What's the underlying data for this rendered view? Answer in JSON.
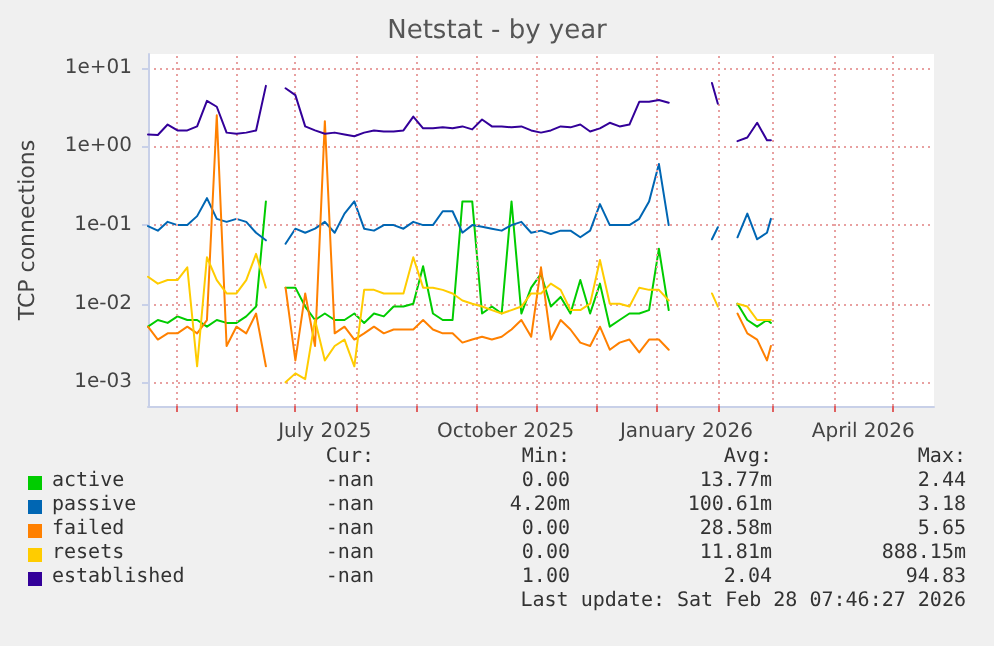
{
  "chart_data": {
    "type": "line",
    "title": "Netstat - by year",
    "ylabel": "TCP connections",
    "log": "y",
    "grid": true,
    "legend": "bottom",
    "marker": "none",
    "line_style": "solid",
    "xlim": [
      "2025-04-17",
      "2026-05-22"
    ],
    "ylim": [
      0.0005,
      15
    ],
    "xticks": [
      {
        "value": "2025-05-01",
        "label": null
      },
      {
        "value": "2025-06-01",
        "label": null
      },
      {
        "value": "2025-07-01",
        "label": null
      },
      {
        "value": "2025-08-01",
        "label": null
      },
      {
        "value": "2025-09-01",
        "label": null
      },
      {
        "value": "2025-10-01",
        "label": null
      },
      {
        "value": "2025-11-01",
        "label": null
      },
      {
        "value": "2025-12-01",
        "label": null
      },
      {
        "value": "2026-01-01",
        "label": null
      },
      {
        "value": "2026-02-01",
        "label": null
      },
      {
        "value": "2026-03-01",
        "label": null
      },
      {
        "value": "2026-04-01",
        "label": null
      },
      {
        "value": "2026-05-01",
        "label": null
      },
      {
        "value": "2025-07-16",
        "label": "July 2025"
      },
      {
        "value": "2025-10-16",
        "label": "October 2025"
      },
      {
        "value": "2026-01-16",
        "label": "January 2026"
      },
      {
        "value": "2026-04-16",
        "label": "April 2026"
      }
    ],
    "yticks": [
      {
        "value": 10,
        "label": "1e+01"
      },
      {
        "value": 1,
        "label": "1e+00"
      },
      {
        "value": 0.1,
        "label": "1e-01"
      },
      {
        "value": 0.01,
        "label": "1e-02"
      },
      {
        "value": 0.001,
        "label": "1e-03"
      }
    ],
    "x": [
      "2025-04-17",
      "2025-04-22",
      "2025-04-27",
      "2025-05-02",
      "2025-05-07",
      "2025-05-12",
      "2025-05-17",
      "2025-05-22",
      "2025-05-27",
      "2025-06-01",
      "2025-06-06",
      "2025-06-11",
      "2025-06-16",
      "2025-06-21",
      "2025-06-26",
      "2025-07-01",
      "2025-07-06",
      "2025-07-11",
      "2025-07-16",
      "2025-07-21",
      "2025-07-26",
      "2025-07-31",
      "2025-08-05",
      "2025-08-10",
      "2025-08-15",
      "2025-08-20",
      "2025-08-25",
      "2025-08-30",
      "2025-09-04",
      "2025-09-09",
      "2025-09-14",
      "2025-09-19",
      "2025-09-24",
      "2025-09-29",
      "2025-10-04",
      "2025-10-09",
      "2025-10-14",
      "2025-10-19",
      "2025-10-24",
      "2025-10-29",
      "2025-11-03",
      "2025-11-08",
      "2025-11-13",
      "2025-11-18",
      "2025-11-23",
      "2025-11-28",
      "2025-12-03",
      "2025-12-08",
      "2025-12-13",
      "2025-12-18",
      "2025-12-23",
      "2025-12-28",
      "2026-01-02",
      "2026-01-07",
      "2026-01-12",
      "2026-01-17",
      "2026-01-22",
      "2026-01-27",
      "2026-01-29",
      "2026-02-01",
      "2026-02-06",
      "2026-02-11",
      "2026-02-16",
      "2026-02-21",
      "2026-02-26",
      "2026-02-28"
    ],
    "series": [
      {
        "name": "active",
        "color": "#00cc00",
        "values": [
          0.0051,
          0.0062,
          0.0057,
          0.0069,
          0.0062,
          0.0062,
          0.0051,
          0.0062,
          0.0057,
          0.0057,
          0.0069,
          0.0092,
          0.2,
          null,
          0.016,
          0.016,
          0.0092,
          0.0062,
          0.0075,
          0.0062,
          0.0062,
          0.0075,
          0.0057,
          0.0075,
          0.0069,
          0.0092,
          0.0092,
          0.01,
          0.03,
          0.0075,
          0.0062,
          0.0062,
          0.2,
          0.2,
          0.0075,
          0.0092,
          0.0075,
          0.2,
          0.0075,
          0.016,
          0.024,
          0.0092,
          0.0122,
          0.0075,
          0.02,
          0.0075,
          0.018,
          0.0051,
          0.0062,
          0.0075,
          0.0075,
          0.0083,
          0.05,
          0.0083,
          null,
          null,
          null,
          null,
          null,
          null,
          null,
          0.01,
          0.0062,
          0.0051,
          0.0062,
          0.0057
        ]
      },
      {
        "name": "passive",
        "color": "#0066b3",
        "values": [
          0.097,
          0.085,
          0.11,
          0.1,
          0.1,
          0.13,
          0.22,
          0.12,
          0.11,
          0.12,
          0.11,
          0.08,
          0.064,
          null,
          0.058,
          0.09,
          0.08,
          0.09,
          0.11,
          0.08,
          0.14,
          0.2,
          0.09,
          0.085,
          0.1,
          0.1,
          0.09,
          0.11,
          0.1,
          0.1,
          0.15,
          0.15,
          0.08,
          0.1,
          0.095,
          0.09,
          0.085,
          0.1,
          0.11,
          0.08,
          0.085,
          0.077,
          0.085,
          0.085,
          0.07,
          0.085,
          0.185,
          0.1,
          0.1,
          0.1,
          0.12,
          0.2,
          0.6,
          0.1,
          null,
          null,
          null,
          null,
          0.066,
          0.094,
          null,
          0.07,
          0.14,
          0.066,
          0.08,
          0.12
        ]
      },
      {
        "name": "failed",
        "color": "#ff8000",
        "values": [
          0.0051,
          0.0035,
          0.0042,
          0.0042,
          0.0051,
          0.0042,
          0.0062,
          2.5,
          0.0029,
          0.0051,
          0.0042,
          0.0075,
          0.0016,
          null,
          0.016,
          0.0019,
          0.0135,
          0.0029,
          2.1,
          0.0042,
          0.0051,
          0.0035,
          0.0042,
          0.0051,
          0.0042,
          0.0047,
          0.0047,
          0.0047,
          0.0062,
          0.0047,
          0.0042,
          0.0042,
          0.0032,
          0.0035,
          0.0038,
          0.0035,
          0.0038,
          0.0047,
          0.0062,
          0.0038,
          0.029,
          0.0035,
          0.0062,
          0.0047,
          0.0032,
          0.0029,
          0.0051,
          0.0026,
          0.0032,
          0.0035,
          0.0024,
          0.0035,
          0.0035,
          0.0026,
          null,
          null,
          null,
          null,
          null,
          null,
          null,
          0.0075,
          0.0042,
          0.0035,
          0.0019,
          0.0029
        ]
      },
      {
        "name": "resets",
        "color": "#ffcc00",
        "values": [
          0.022,
          0.018,
          0.02,
          0.02,
          0.029,
          0.0016,
          0.039,
          0.02,
          0.0135,
          0.0135,
          0.02,
          0.043,
          0.016,
          null,
          0.001,
          0.0013,
          0.0011,
          0.0062,
          0.0019,
          0.0029,
          0.0035,
          0.0016,
          0.015,
          0.015,
          0.0135,
          0.0135,
          0.0135,
          0.039,
          0.016,
          0.016,
          0.015,
          0.0135,
          0.011,
          0.01,
          0.0092,
          0.0083,
          0.0075,
          0.0083,
          0.0092,
          0.0135,
          0.0135,
          0.018,
          0.015,
          0.0083,
          0.0083,
          0.01,
          0.036,
          0.01,
          0.01,
          0.0092,
          0.016,
          0.015,
          0.015,
          0.011,
          null,
          null,
          null,
          null,
          0.0135,
          0.0092,
          null,
          0.01,
          0.0092,
          0.0062,
          0.0062,
          0.0062
        ]
      },
      {
        "name": "established",
        "color": "#330099",
        "values": [
          1.42,
          1.4,
          1.9,
          1.6,
          1.6,
          1.8,
          3.8,
          3.2,
          1.5,
          1.45,
          1.5,
          1.6,
          5.9,
          null,
          5.5,
          4.5,
          1.8,
          1.6,
          1.45,
          1.5,
          1.42,
          1.35,
          1.5,
          1.6,
          1.55,
          1.55,
          1.6,
          2.4,
          1.7,
          1.7,
          1.75,
          1.7,
          1.8,
          1.65,
          2.2,
          1.8,
          1.8,
          1.75,
          1.8,
          1.6,
          1.5,
          1.6,
          1.8,
          1.75,
          1.9,
          1.55,
          1.7,
          2,
          1.8,
          1.9,
          3.7,
          3.7,
          3.9,
          3.6,
          null,
          null,
          null,
          null,
          6.4,
          3.5,
          null,
          1.17,
          1.3,
          2,
          1.2,
          1.2
        ]
      }
    ],
    "annotations": [
      "Cur:",
      "Min:",
      "Avg:",
      "Max:",
      "-nan",
      "0.00",
      "13.77m",
      "2.44",
      "-nan",
      "4.20m",
      "100.61m",
      "3.18",
      "-nan",
      "0.00",
      "28.58m",
      "5.65",
      "-nan",
      "0.00",
      "11.81m",
      "888.15m",
      "-nan",
      "1.00",
      "2.04",
      "94.83",
      "Last update: Sat Feb 28 07:46:27 2026"
    ]
  }
}
